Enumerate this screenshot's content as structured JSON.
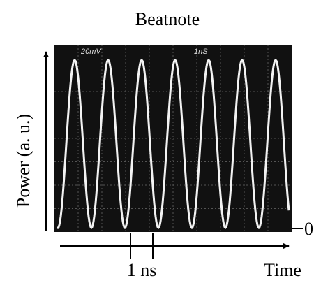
{
  "figure": {
    "title": "Beatnote",
    "y_label": "Power (a. u.)",
    "x_label": "Time",
    "zero_label": "0",
    "scale_label": "1 ns",
    "screen": {
      "volts_per_div": "20mV",
      "time_per_div": "1nS"
    }
  }
}
